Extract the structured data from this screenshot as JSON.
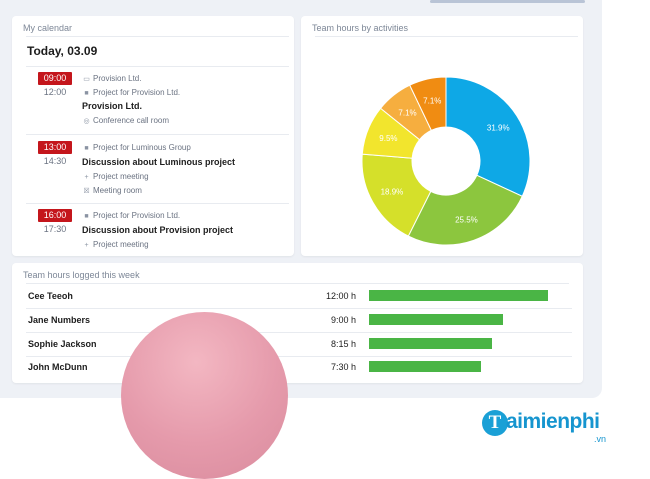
{
  "calendar": {
    "title": "My calendar",
    "date": "Today, 03.09",
    "events": [
      {
        "start": "09:00",
        "end": "12:00",
        "lines": [
          {
            "icon": "folder-icon",
            "text": "Provision Ltd."
          },
          {
            "icon": "briefcase-icon",
            "text": "Project for Provision Ltd."
          }
        ],
        "title": "Provision Ltd.",
        "details": [
          {
            "icon": "location-icon",
            "text": "Conference call room"
          }
        ]
      },
      {
        "start": "13:00",
        "end": "14:30",
        "lines": [
          {
            "icon": "briefcase-icon",
            "text": "Project for Luminous Group"
          }
        ],
        "title": "Discussion about Luminous project",
        "details": [
          {
            "icon": "plus-icon",
            "text": "Project meeting"
          },
          {
            "icon": "meeting-icon",
            "text": "Meeting room"
          }
        ]
      },
      {
        "start": "16:00",
        "end": "17:30",
        "lines": [
          {
            "icon": "briefcase-icon",
            "text": "Project for Provision Ltd."
          }
        ],
        "title": "Discussion about Provision project",
        "details": [
          {
            "icon": "plus-icon",
            "text": "Project meeting"
          }
        ]
      }
    ]
  },
  "chart_data": {
    "type": "pie",
    "title": "Team hours by activities",
    "donut": true,
    "slices": [
      {
        "value": 31.9,
        "label": "31.9%",
        "color": "#0ea8e6"
      },
      {
        "value": 25.5,
        "label": "25.5%",
        "color": "#8cc63e"
      },
      {
        "value": 18.9,
        "label": "18.9%",
        "color": "#d5e02a"
      },
      {
        "value": 9.5,
        "label": "9.5%",
        "color": "#f2e52d"
      },
      {
        "value": 7.1,
        "label": "7.1%",
        "color": "#f6ae3f"
      },
      {
        "value": 7.1,
        "label": "7.1%",
        "color": "#f08c12"
      }
    ]
  },
  "hours": {
    "title": "Team hours logged this week",
    "bar_color": "#4ab545",
    "max_hours": 12.0,
    "rows": [
      {
        "name": "Cee Teeoh",
        "value": "12:00 h",
        "hours": 12.0
      },
      {
        "name": "Jane Numbers",
        "value": "9:00 h",
        "hours": 9.0
      },
      {
        "name": "Sophie Jackson",
        "value": "8:15 h",
        "hours": 8.25
      },
      {
        "name": "John McDunn",
        "value": "7:30 h",
        "hours": 7.5
      }
    ]
  },
  "brand": {
    "initial": "T",
    "name": "aimienphi",
    "suffix": ".vn"
  }
}
